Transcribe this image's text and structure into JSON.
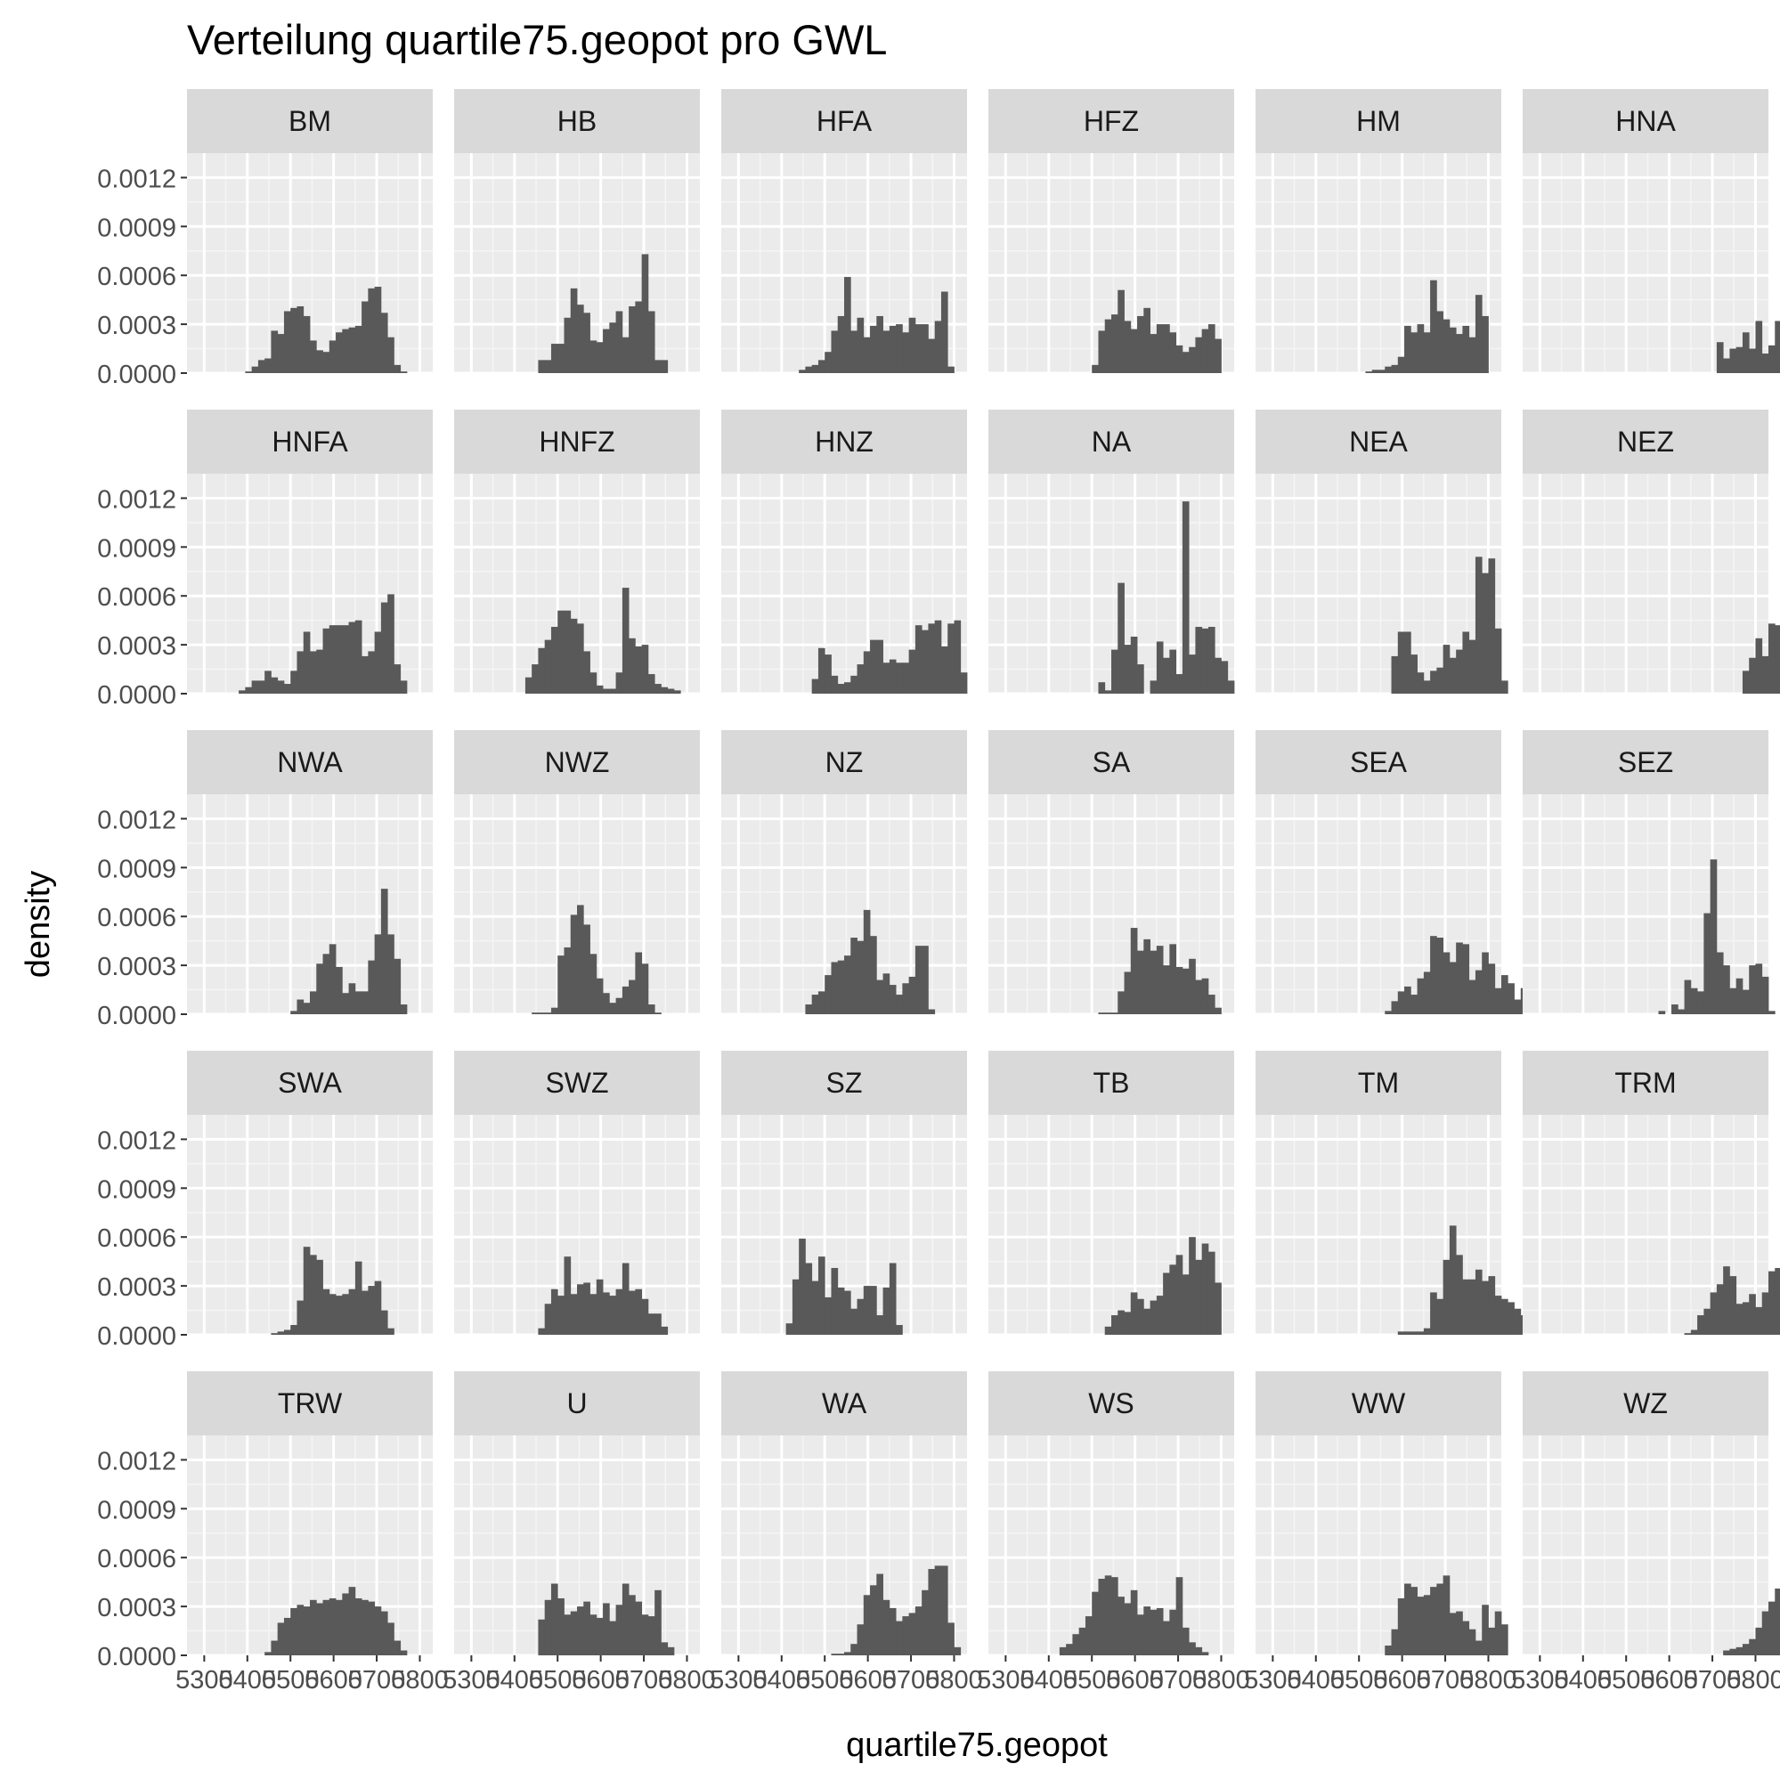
{
  "chart_data": {
    "type": "histogram-facets",
    "title": "Verteilung quartile75.geopot pro GWL",
    "xlabel": "quartile75.geopot",
    "ylabel": "density",
    "ylim": [
      0,
      0.00135
    ],
    "y_ticks": [
      "0.0000",
      "0.0003",
      "0.0006",
      "0.0009",
      "0.0012"
    ],
    "y_tick_values": [
      0,
      0.0003,
      0.0006,
      0.0009,
      0.0012
    ],
    "xlim": [
      5260,
      5830
    ],
    "x_ticks": [
      "5300",
      "5400",
      "5500",
      "5600",
      "5700",
      "5800"
    ],
    "x_tick_values": [
      5300,
      5400,
      5500,
      5600,
      5700,
      5800
    ],
    "x_break_values": [
      5350,
      5450,
      5550,
      5650,
      5750
    ],
    "bin_start": 5350,
    "bin_width": 15,
    "ncol": 6,
    "bar_color": "#595959",
    "panel_bg": "#ebebeb",
    "strip_bg": "#d9d9d9",
    "panels": [
      {
        "name": "BM",
        "values": [
          0,
          0,
          0,
          1e-05,
          4e-05,
          8e-05,
          9e-05,
          0.00026,
          0.00024,
          0.00038,
          0.0004,
          0.00041,
          0.00035,
          0.0002,
          0.00014,
          0.00013,
          0.0002,
          0.00025,
          0.00027,
          0.00028,
          0.00029,
          0.00044,
          0.00052,
          0.00053,
          0.00037,
          0.00022,
          5e-05,
          1e-05
        ]
      },
      {
        "name": "HB",
        "values": [
          0,
          0,
          0,
          0,
          0,
          0,
          0,
          8e-05,
          8e-05,
          0.00018,
          0.00018,
          0.00034,
          0.00052,
          0.00042,
          0.00037,
          0.0002,
          0.00019,
          0.00027,
          0.00031,
          0.00038,
          0.00022,
          0.00041,
          0.00044,
          0.00073,
          0.00038,
          8e-05,
          8e-05,
          0
        ]
      },
      {
        "name": "HFA",
        "values": [
          0,
          0,
          0,
          0,
          0,
          0,
          2e-05,
          4e-05,
          5e-05,
          8e-05,
          0.00013,
          0.00026,
          0.00035,
          0.00059,
          0.00026,
          0.00034,
          0.00022,
          0.00029,
          0.00035,
          0.00026,
          0.00029,
          0.0003,
          0.00025,
          0.00034,
          0.0003,
          0.0003,
          0.00021,
          0.00032,
          0.0005,
          4e-05
        ]
      },
      {
        "name": "HFZ",
        "values": [
          0,
          0,
          0,
          0,
          0,
          0,
          0,
          0,
          0,
          0,
          5e-05,
          0.00026,
          0.00033,
          0.00036,
          0.00051,
          0.00032,
          0.00027,
          0.00035,
          0.0004,
          0.00024,
          0.0003,
          0.0003,
          0.00025,
          0.00017,
          0.00013,
          0.00016,
          0.00022,
          0.00027,
          0.0003,
          0.00021
        ]
      },
      {
        "name": "HM",
        "values": [
          0,
          0,
          0,
          0,
          0,
          0,
          0,
          0,
          0,
          0,
          0,
          1e-05,
          2e-05,
          2e-05,
          4e-05,
          5e-05,
          0.0001,
          0.00029,
          0.00025,
          0.0003,
          0.00025,
          0.00057,
          0.00038,
          0.00033,
          0.00028,
          0.00024,
          0.00029,
          0.00022,
          0.00048,
          0.00035
        ]
      },
      {
        "name": "HNA",
        "values": [
          0,
          0,
          0,
          0,
          0,
          0,
          0,
          0,
          0,
          0,
          0,
          0,
          0,
          0,
          0,
          0,
          0,
          0,
          0,
          0,
          0,
          0,
          0,
          0,
          0.00019,
          9e-05,
          0.00015,
          0.00016,
          0.00025,
          0.00015,
          0.00032,
          0.00012,
          0.00017,
          0.00032,
          0.00028,
          0.00012,
          0.00039,
          3e-05
        ]
      },
      {
        "name": "HNFA",
        "values": [
          0,
          0,
          2e-05,
          4e-05,
          8e-05,
          8e-05,
          0.00014,
          0.0001,
          8e-05,
          6e-05,
          0.00014,
          0.00026,
          0.00038,
          0.00026,
          0.00027,
          0.0004,
          0.00042,
          0.00042,
          0.00042,
          0.00044,
          0.00045,
          0.00023,
          0.00026,
          0.00038,
          0.00056,
          0.00061,
          0.00018,
          8e-05,
          0
        ]
      },
      {
        "name": "HNFZ",
        "values": [
          0,
          0,
          0,
          0,
          0,
          0.0001,
          0.00018,
          0.00028,
          0.00033,
          0.00041,
          0.00051,
          0.00051,
          0.00046,
          0.00043,
          0.00026,
          0.00013,
          5e-05,
          3e-05,
          3e-05,
          0.00013,
          0.00065,
          0.00034,
          0.00029,
          0.0003,
          0.00012,
          6e-05,
          4e-05,
          3e-05,
          2e-05
        ]
      },
      {
        "name": "HNZ",
        "values": [
          0,
          0,
          0,
          0,
          0,
          0,
          0,
          0,
          9e-05,
          0.00028,
          0.00024,
          0.00011,
          6e-05,
          7e-05,
          0.00011,
          0.00018,
          0.00026,
          0.00033,
          0.00033,
          0.00019,
          0.00021,
          0.00019,
          0.00019,
          0.00027,
          0.00042,
          0.00039,
          0.00043,
          0.00045,
          0.00029,
          0.00043,
          0.00045,
          0.00013
        ]
      },
      {
        "name": "NA",
        "values": [
          0,
          0,
          0,
          0,
          0,
          0,
          0,
          0,
          0,
          0,
          0,
          7e-05,
          2e-05,
          0.00027,
          0.00068,
          0.0003,
          0.00035,
          0.00018,
          0,
          8e-05,
          0.00032,
          0.00022,
          0.00027,
          0.00012,
          0.00118,
          0.00024,
          0.00041,
          0.0004,
          0.00041,
          0.00022,
          0.0002,
          8e-05
        ]
      },
      {
        "name": "NEA",
        "values": [
          0,
          0,
          0,
          0,
          0,
          0,
          0,
          0,
          0,
          0,
          0,
          0,
          0,
          0,
          0,
          0.00023,
          0.00038,
          0.00038,
          0.00024,
          0.00013,
          8e-05,
          0.00014,
          0.00016,
          0.0003,
          0.00022,
          0.00027,
          0.00038,
          0.00033,
          0.00084,
          0.00074,
          0.00083,
          0.0004,
          8e-05
        ]
      },
      {
        "name": "NEZ",
        "values": [
          0,
          0,
          0,
          0,
          0,
          0,
          0,
          0,
          0,
          0,
          0,
          0,
          0,
          0,
          0,
          0,
          0,
          0,
          0,
          0,
          0,
          0,
          0,
          0,
          0,
          0,
          0,
          0,
          0.00014,
          0.00022,
          0.00034,
          0.00023,
          0.00043,
          0.00042,
          0.00034,
          0.00023,
          0.00014,
          0.00019,
          0.00045,
          0.00077,
          0.00067,
          4e-05
        ]
      },
      {
        "name": "NWA",
        "values": [
          0,
          0,
          0,
          0,
          0,
          0,
          0,
          0,
          0,
          0,
          2e-05,
          9e-05,
          7e-05,
          0.00014,
          0.00031,
          0.00037,
          0.00043,
          0.00029,
          0.00013,
          0.00019,
          0.00014,
          0.00014,
          0.00033,
          0.00049,
          0.00077,
          0.00049,
          0.00034,
          6e-05
        ]
      },
      {
        "name": "NWZ",
        "values": [
          0,
          0,
          0,
          0,
          0,
          0,
          1e-05,
          1e-05,
          1e-05,
          4e-05,
          0.00036,
          0.00041,
          0.00061,
          0.00067,
          0.00055,
          0.00037,
          0.00022,
          0.00013,
          7e-05,
          0.0001,
          0.00017,
          0.00021,
          0.00038,
          0.00031,
          6e-05,
          1e-05
        ]
      },
      {
        "name": "NZ",
        "values": [
          0,
          0,
          0,
          0,
          0,
          0,
          0,
          6e-05,
          0.00012,
          0.00014,
          0.00024,
          0.00032,
          0.00033,
          0.00036,
          0.00047,
          0.00045,
          0.00064,
          0.00048,
          0.00021,
          0.00025,
          0.00018,
          0.00012,
          0.00019,
          0.00023,
          0.00042,
          0.00042,
          3e-05
        ]
      },
      {
        "name": "SA",
        "values": [
          0,
          0,
          0,
          0,
          0,
          0,
          0,
          0,
          0,
          0,
          0,
          1e-05,
          1e-05,
          1e-05,
          0.00014,
          0.00026,
          0.00053,
          0.00039,
          0.00046,
          0.00039,
          0.00042,
          0.0003,
          0.00043,
          0.00029,
          0.00028,
          0.00034,
          0.00021,
          0.00022,
          0.00012,
          4e-05
        ]
      },
      {
        "name": "SEA",
        "values": [
          0,
          0,
          0,
          0,
          0,
          0,
          0,
          0,
          0,
          0,
          0,
          0,
          0,
          0,
          2e-05,
          8e-05,
          0.00014,
          0.00017,
          0.00012,
          0.00022,
          0.00026,
          0.00048,
          0.00047,
          0.00038,
          0.00032,
          0.00044,
          0.00043,
          0.00021,
          0.00027,
          0.00038,
          0.00031,
          0.00016,
          0.00024,
          0.00019,
          9e-05,
          0.00016,
          9e-05
        ]
      },
      {
        "name": "SEZ",
        "values": [
          0,
          0,
          0,
          0,
          0,
          0,
          0,
          0,
          0,
          0,
          0,
          0,
          0,
          0,
          0,
          2e-05,
          0,
          6e-05,
          3e-05,
          0.00021,
          0.00016,
          0.00014,
          0.00062,
          0.00095,
          0.00038,
          0.0003,
          0.00016,
          0.00022,
          0.00015,
          0.0003,
          0.00031,
          0.00023,
          2e-05
        ]
      },
      {
        "name": "SWA",
        "values": [
          0,
          0,
          0,
          0,
          0,
          0,
          0,
          1e-05,
          2e-05,
          3e-05,
          6e-05,
          0.00021,
          0.00054,
          0.00049,
          0.00046,
          0.00028,
          0.00025,
          0.00024,
          0.00025,
          0.00028,
          0.00045,
          0.00027,
          0.0003,
          0.00033,
          0.00015,
          4e-05,
          0
        ]
      },
      {
        "name": "SWZ",
        "values": [
          0,
          0,
          0,
          0,
          0,
          0,
          0,
          4e-05,
          0.00019,
          0.00028,
          0.00024,
          0.00048,
          0.00025,
          0.00031,
          0.00032,
          0.00025,
          0.00034,
          0.00026,
          0.00024,
          0.00028,
          0.00044,
          0.00027,
          0.00028,
          0.00022,
          0.00013,
          0.00013,
          5e-05
        ]
      },
      {
        "name": "SZ",
        "values": [
          0,
          0,
          0,
          0,
          7e-05,
          0.00034,
          0.00059,
          0.00044,
          0.00033,
          0.00048,
          0.00023,
          0.00041,
          0.00029,
          0.00027,
          0.00016,
          0.00022,
          0.0003,
          0.0003,
          0.00012,
          0.00029,
          0.00044,
          6e-05
        ]
      },
      {
        "name": "TB",
        "values": [
          0,
          0,
          0,
          0,
          0,
          0,
          0,
          0,
          0,
          0,
          0,
          0,
          5e-05,
          0.00012,
          0.00015,
          0.00014,
          0.00026,
          0.00022,
          0.00016,
          0.00021,
          0.00024,
          0.00038,
          0.00043,
          0.00049,
          0.00037,
          0.0006,
          0.00046,
          0.00056,
          0.00051,
          0.00032
        ]
      },
      {
        "name": "TM",
        "values": [
          0,
          0,
          0,
          0,
          0,
          0,
          0,
          0,
          0,
          0,
          0,
          0,
          0,
          0,
          0,
          0,
          2e-05,
          2e-05,
          2e-05,
          2e-05,
          4e-05,
          0.00026,
          0.00022,
          0.00046,
          0.00067,
          0.00049,
          0.00034,
          0.00034,
          0.0004,
          0.00033,
          0.00036,
          0.00024,
          0.00022,
          0.0002,
          0.00016,
          0.00012
        ]
      },
      {
        "name": "TRM",
        "values": [
          0,
          0,
          0,
          0,
          0,
          0,
          0,
          0,
          0,
          0,
          0,
          0,
          0,
          0,
          0,
          0,
          0,
          0,
          0,
          1e-05,
          3e-05,
          0.00012,
          0.00016,
          0.00026,
          0.00031,
          0.00042,
          0.00036,
          0.00019,
          0.0002,
          0.00025,
          0.00017,
          0.00026,
          0.00039,
          0.00041,
          0.00042,
          0.00033,
          5e-05
        ]
      },
      {
        "name": "TRW",
        "values": [
          0,
          0,
          0,
          0,
          0,
          0,
          2e-05,
          9e-05,
          0.0002,
          0.00023,
          0.00029,
          0.00031,
          0.0003,
          0.00034,
          0.00032,
          0.00034,
          0.00035,
          0.00034,
          0.00038,
          0.00042,
          0.00035,
          0.00034,
          0.00033,
          0.0003,
          0.00027,
          0.0002,
          9e-05,
          3e-05,
          0
        ]
      },
      {
        "name": "U",
        "values": [
          0,
          0,
          0,
          0,
          0,
          0,
          0,
          0.00022,
          0.00034,
          0.00044,
          0.00035,
          0.00025,
          0.00027,
          0.0003,
          0.00033,
          0.00025,
          0.00023,
          0.00032,
          0.00021,
          0.00031,
          0.00044,
          0.00037,
          0.00033,
          0.00025,
          0.00024,
          0.0004,
          8e-05,
          5e-05
        ]
      },
      {
        "name": "WA",
        "values": [
          0,
          0,
          0,
          0,
          0,
          0,
          0,
          0,
          0,
          0,
          0,
          1e-05,
          1e-05,
          2e-05,
          7e-05,
          0.00019,
          0.00037,
          0.00043,
          0.0005,
          0.00034,
          0.00029,
          0.00021,
          0.00024,
          0.00026,
          0.0003,
          0.0004,
          0.00053,
          0.00055,
          0.00055,
          0.0002,
          5e-05
        ]
      },
      {
        "name": "WS",
        "values": [
          0,
          0,
          0,
          0,
          0,
          5e-05,
          7e-05,
          0.00013,
          0.00017,
          0.00024,
          0.00039,
          0.00047,
          0.00049,
          0.00048,
          0.00036,
          0.00032,
          0.0004,
          0.00025,
          0.0003,
          0.00028,
          0.00029,
          0.00021,
          0.00028,
          0.00048,
          0.00017,
          8e-05,
          5e-05,
          2e-05
        ]
      },
      {
        "name": "WW",
        "values": [
          0,
          0,
          0,
          0,
          0,
          0,
          0,
          0,
          0,
          0,
          0,
          0,
          0,
          0,
          6e-05,
          0.00016,
          0.00035,
          0.00044,
          0.00042,
          0.00036,
          0.00037,
          0.00042,
          0.00044,
          0.00049,
          0.00026,
          0.00027,
          0.00021,
          0.00016,
          9e-05,
          0.00031,
          0.00017,
          0.00027,
          0.00019
        ]
      },
      {
        "name": "WZ",
        "values": [
          0,
          0,
          0,
          0,
          0,
          0,
          0,
          0,
          0,
          0,
          0,
          0,
          0,
          0,
          0,
          0,
          0,
          0,
          0,
          0,
          0,
          0,
          0,
          0,
          0,
          3e-05,
          4e-05,
          5e-05,
          7e-05,
          0.0001,
          0.00017,
          0.00027,
          0.00033,
          0.00041,
          0.00044,
          0.00039,
          0.00037,
          0.00032,
          0.0002,
          0.00025,
          0.00025,
          0.00019,
          0.00022,
          0.00026,
          0.00036,
          0.00041,
          0.00036,
          0.00026,
          0.00013,
          2e-05
        ]
      }
    ]
  }
}
